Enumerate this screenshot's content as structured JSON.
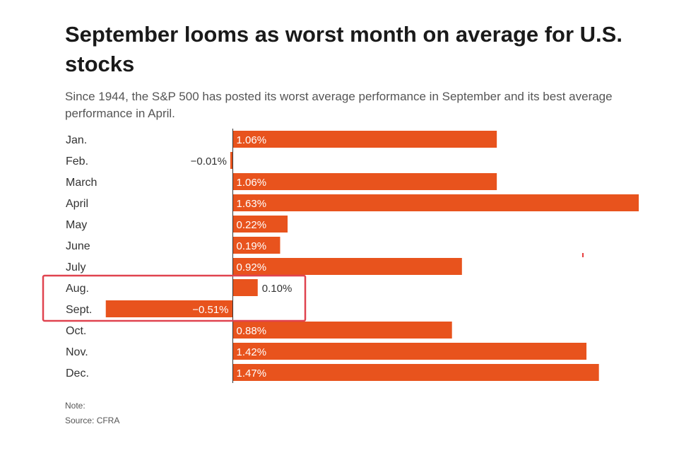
{
  "title": "September looms as worst month on average for U.S. stocks",
  "subtitle": "Since 1944, the S&P 500 has posted its worst average performance in September and its best average performance in April.",
  "note": "Note:",
  "source": "Source: CFRA",
  "colors": {
    "bar": "#e8531d",
    "highlight_box": "#e0434f",
    "axis": "#333333",
    "label_inside": "#ffffff",
    "label_outside": "#333333"
  },
  "chart_data": {
    "type": "bar",
    "orientation": "horizontal",
    "title": "September looms as worst month on average for U.S. stocks",
    "xlabel": "",
    "ylabel": "",
    "unit": "%",
    "xlim": [
      -0.51,
      1.63
    ],
    "categories": [
      "Jan.",
      "Feb.",
      "March",
      "April",
      "May",
      "June",
      "July",
      "Aug.",
      "Sept.",
      "Oct.",
      "Nov.",
      "Dec."
    ],
    "values": [
      1.06,
      -0.01,
      1.06,
      1.63,
      0.22,
      0.19,
      0.92,
      0.1,
      -0.51,
      0.88,
      1.42,
      1.47
    ],
    "labels": [
      "1.06%",
      "−0.01%",
      "1.06%",
      "1.63%",
      "0.22%",
      "0.19%",
      "0.92%",
      "0.10%",
      "−0.51%",
      "0.88%",
      "1.42%",
      "1.47%"
    ],
    "highlighted_categories": [
      "Aug.",
      "Sept."
    ],
    "grid": false
  }
}
